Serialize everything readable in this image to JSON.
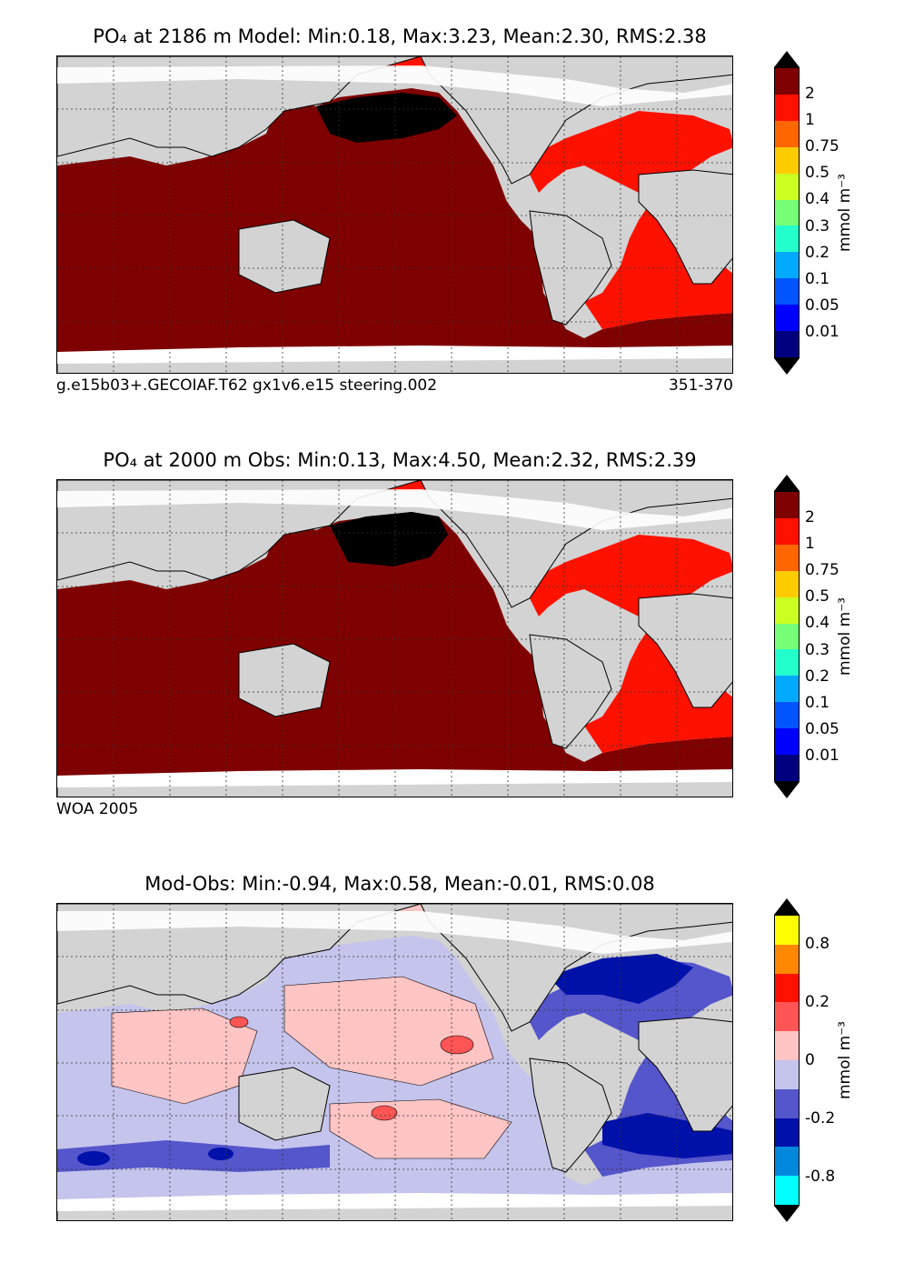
{
  "panels": [
    {
      "title": "PO₄ at 2186 m Model: Min:0.18, Max:3.23, Mean:2.30, RMS:2.38",
      "footer_left": "g.e15b03+.GECOIAF.T62 gx1v6.e15 steering.002",
      "footer_right": "351-370",
      "colorbar_ticks": [
        "0.01",
        "0.05",
        "0.1",
        "0.2",
        "0.3",
        "0.4",
        "0.5",
        "0.75",
        "1",
        "2"
      ],
      "unit": "mmol m⁻³",
      "colors": [
        "#00007f",
        "#0000ff",
        "#0055ff",
        "#00aaff",
        "#22ffcc",
        "#77ff77",
        "#ccff22",
        "#ffcc00",
        "#ff6600",
        "#ff1100",
        "#7f0000"
      ],
      "ocean_fill": "#7f0000",
      "atlantic_fill": "#ff1100"
    },
    {
      "title": "PO₄ at 2000 m Obs: Min:0.13, Max:4.50, Mean:2.32, RMS:2.39",
      "footer_left": "WOA 2005",
      "footer_right": "",
      "colorbar_ticks": [
        "0.01",
        "0.05",
        "0.1",
        "0.2",
        "0.3",
        "0.4",
        "0.5",
        "0.75",
        "1",
        "2"
      ],
      "unit": "mmol m⁻³",
      "colors": [
        "#00007f",
        "#0000ff",
        "#0055ff",
        "#00aaff",
        "#22ffcc",
        "#77ff77",
        "#ccff22",
        "#ffcc00",
        "#ff6600",
        "#ff1100",
        "#7f0000"
      ],
      "ocean_fill": "#7f0000",
      "atlantic_fill": "#ff1100"
    },
    {
      "title": "Mod-Obs: Min:-0.94, Max:0.58, Mean:-0.01, RMS:0.08",
      "footer_left": "",
      "footer_right": "",
      "colorbar_ticks": [
        "-0.8",
        "-0.2",
        "0",
        "0.2",
        "0.8"
      ],
      "unit": "mmol m⁻³",
      "colors": [
        "#00ffff",
        "#0088dd",
        "#0011aa",
        "#5555cc",
        "#c4c4ec",
        "#ffc4c4",
        "#ff5555",
        "#ff1100",
        "#ff8800",
        "#ffff00"
      ],
      "ocean_fill": "#c4c4ec",
      "atlantic_fill": "#5555cc"
    }
  ],
  "colors": {
    "land": "#d3d3d3",
    "missing": "#ffffff",
    "coast": "#000000"
  }
}
